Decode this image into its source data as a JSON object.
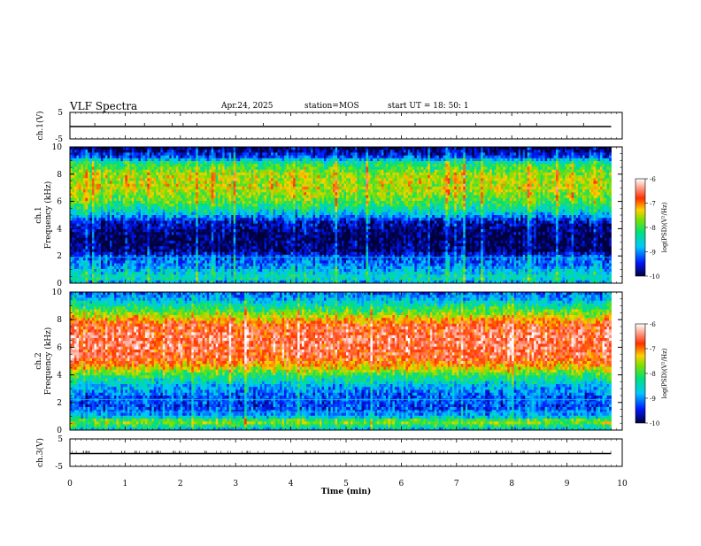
{
  "header": {
    "title": "VLF Spectra",
    "date": "Apr.24, 2025",
    "station": "station=MOS",
    "start": "start  UT =  18: 50: 1"
  },
  "chart_data": [
    {
      "type": "line",
      "panel": "channel-1-waveform",
      "ylabel": "ch.1(V)",
      "ylim": [
        -5,
        5
      ],
      "yticks": [
        "5",
        "-5"
      ],
      "xlim": [
        0,
        10
      ],
      "x_extent_min": 9.8,
      "baseline": 0,
      "spikes_up_at_min": [
        0.45,
        1.0,
        1.35,
        1.85,
        2.05,
        2.3,
        3.5,
        4.5,
        5.45,
        6.25,
        7.35,
        8.15,
        8.45,
        9.3
      ]
    },
    {
      "type": "heatmap",
      "panel": "channel-1-spectrogram",
      "ylabel": "ch.1 Frequency (kHz)",
      "xlim": [
        0,
        10
      ],
      "ylim": [
        0,
        10
      ],
      "yticks": [
        0,
        2,
        4,
        6,
        8,
        10
      ],
      "x_extent_min": 9.8,
      "colorbar": {
        "label": "log(PSD)(V²/Hz)",
        "range": [
          -10,
          -6
        ],
        "ticks": [
          "-6",
          "-7",
          "-8",
          "-9",
          "-10"
        ]
      },
      "frequency_profile_khz": [
        [
          0.0,
          -9.0
        ],
        [
          0.4,
          -8.3
        ],
        [
          0.7,
          -8.6
        ],
        [
          1.2,
          -9.0
        ],
        [
          1.9,
          -9.3
        ],
        [
          2.4,
          -9.9
        ],
        [
          3.5,
          -9.95
        ],
        [
          4.5,
          -9.6
        ],
        [
          5.2,
          -8.6
        ],
        [
          6.0,
          -7.9
        ],
        [
          7.0,
          -7.5
        ],
        [
          8.0,
          -7.6
        ],
        [
          8.8,
          -8.2
        ],
        [
          9.3,
          -9.4
        ],
        [
          10.0,
          -10.0
        ]
      ],
      "lines_khz": [
        0.5,
        1.9
      ]
    },
    {
      "type": "heatmap",
      "panel": "channel-2-spectrogram",
      "ylabel": "ch.2 Frequency (kHz)",
      "xlim": [
        0,
        10
      ],
      "ylim": [
        0,
        10
      ],
      "yticks": [
        0,
        2,
        4,
        6,
        8,
        10
      ],
      "x_extent_min": 9.8,
      "colorbar": {
        "label": "log(PSD)(V²/Hz)",
        "range": [
          -10,
          -6
        ],
        "ticks": [
          "-6",
          "-7",
          "-8",
          "-9",
          "-10"
        ]
      },
      "frequency_profile_khz": [
        [
          0.0,
          -8.8
        ],
        [
          0.6,
          -7.6
        ],
        [
          1.0,
          -8.8
        ],
        [
          1.6,
          -9.3
        ],
        [
          2.4,
          -9.2
        ],
        [
          3.2,
          -8.8
        ],
        [
          4.0,
          -8.0
        ],
        [
          4.6,
          -7.2
        ],
        [
          5.2,
          -6.7
        ],
        [
          6.5,
          -6.5
        ],
        [
          7.6,
          -6.7
        ],
        [
          8.4,
          -7.6
        ],
        [
          9.0,
          -8.3
        ],
        [
          9.6,
          -8.9
        ],
        [
          10.0,
          -9.2
        ]
      ],
      "lines_khz": [
        2.2,
        1.3
      ]
    },
    {
      "type": "line",
      "panel": "channel-3-waveform",
      "ylabel": "ch.3(V)",
      "ylim": [
        -5,
        5
      ],
      "yticks": [
        "5",
        "-5"
      ],
      "xlim": [
        0,
        10
      ],
      "x_extent_min": 9.8,
      "baseline": 0,
      "xlabel": "Time (min)",
      "xticks": [
        "0",
        "1",
        "2",
        "3",
        "4",
        "5",
        "6",
        "7",
        "8",
        "9",
        "10"
      ]
    }
  ],
  "colors": {
    "colormap": [
      "#00003a",
      "#0018ff",
      "#00c8ff",
      "#00e07a",
      "#7ee000",
      "#ffd000",
      "#ff3000",
      "#ffffff"
    ],
    "axes": "#000000"
  }
}
